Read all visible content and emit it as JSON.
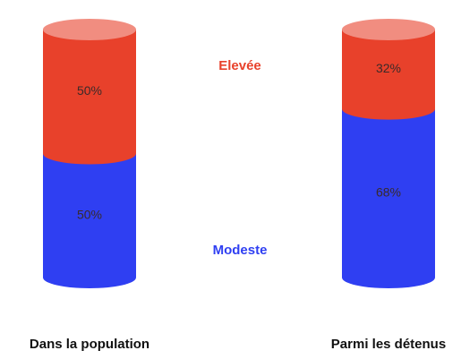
{
  "chart_data": {
    "type": "bar",
    "stacked": true,
    "categories": [
      "Dans la population",
      "Parmi les détenus"
    ],
    "series": [
      {
        "name": "Modeste",
        "color": "#2f3ff2",
        "values": [
          50,
          68
        ],
        "value_labels": [
          "50%",
          "68%"
        ]
      },
      {
        "name": "Elevée",
        "color": "#e8412b",
        "values": [
          50,
          32
        ],
        "value_labels": [
          "50%",
          "32%"
        ]
      }
    ]
  }
}
